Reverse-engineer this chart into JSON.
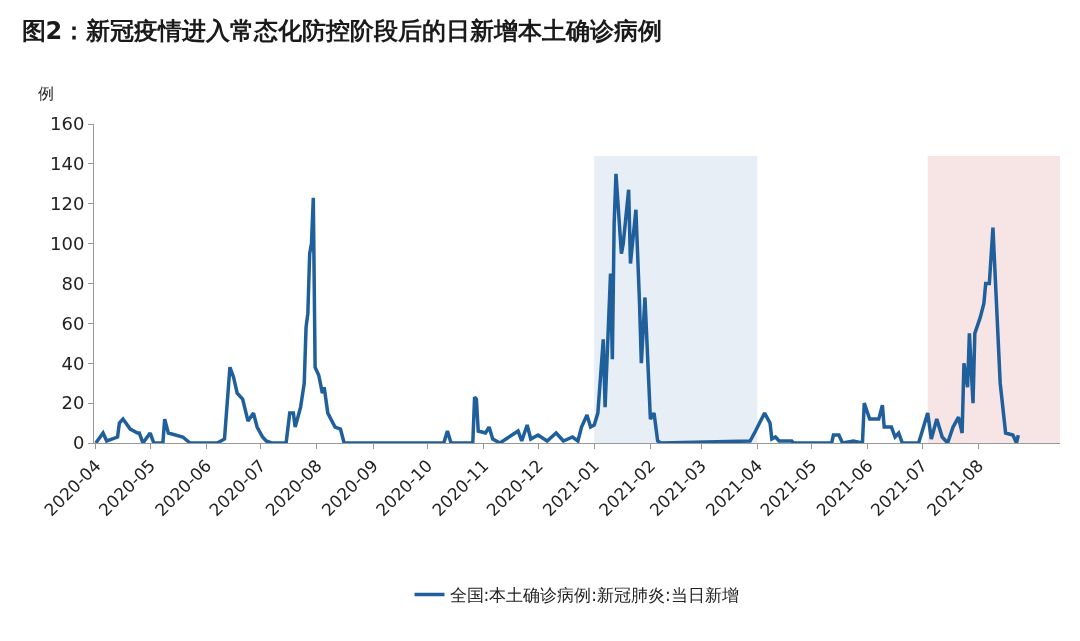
{
  "chart_data": {
    "type": "line",
    "title": "图2：新冠疫情进入常态化防控阶段后的日新增本土确诊病例",
    "ylabel": "例",
    "x": [
      "2020-04-01",
      "2020-04-05",
      "2020-04-07",
      "2020-04-13",
      "2020-04-14",
      "2020-04-16",
      "2020-04-20",
      "2020-04-24",
      "2020-04-25",
      "2020-04-27",
      "2020-05-01",
      "2020-05-03",
      "2020-05-08",
      "2020-05-09",
      "2020-05-11",
      "2020-05-19",
      "2020-05-23",
      "2020-06-07",
      "2020-06-11",
      "2020-06-14",
      "2020-06-16",
      "2020-06-18",
      "2020-06-21",
      "2020-06-24",
      "2020-06-27",
      "2020-06-29",
      "2020-07-02",
      "2020-07-04",
      "2020-07-07",
      "2020-07-15",
      "2020-07-17",
      "2020-07-19",
      "2020-07-20",
      "2020-07-23",
      "2020-07-25",
      "2020-07-26",
      "2020-07-27",
      "2020-07-28",
      "2020-07-29",
      "2020-07-30",
      "2020-07-31",
      "2020-08-02",
      "2020-08-04",
      "2020-08-05",
      "2020-08-07",
      "2020-08-11",
      "2020-08-14",
      "2020-08-16",
      "2020-10-10",
      "2020-10-12",
      "2020-10-14",
      "2020-10-26",
      "2020-10-27",
      "2020-10-28",
      "2020-10-29",
      "2020-11-02",
      "2020-11-04",
      "2020-11-06",
      "2020-11-10",
      "2020-11-20",
      "2020-11-22",
      "2020-11-25",
      "2020-11-27",
      "2020-12-01",
      "2020-12-06",
      "2020-12-11",
      "2020-12-15",
      "2020-12-20",
      "2020-12-23",
      "2020-12-25",
      "2020-12-28",
      "2020-12-30",
      "2021-01-01",
      "2021-01-03",
      "2021-01-06",
      "2021-01-07",
      "2021-01-10",
      "2021-01-11",
      "2021-01-12",
      "2021-01-13",
      "2021-01-16",
      "2021-01-17",
      "2021-01-20",
      "2021-01-21",
      "2021-01-24",
      "2021-01-26",
      "2021-01-27",
      "2021-01-29",
      "2021-02-01",
      "2021-02-03",
      "2021-02-05",
      "2021-02-07",
      "2021-03-28",
      "2021-03-31",
      "2021-04-05",
      "2021-04-08",
      "2021-04-09",
      "2021-04-11",
      "2021-04-13",
      "2021-04-20",
      "2021-04-21",
      "2021-05-12",
      "2021-05-13",
      "2021-05-16",
      "2021-05-18",
      "2021-05-24",
      "2021-05-29",
      "2021-05-30",
      "2021-06-02",
      "2021-06-07",
      "2021-06-09",
      "2021-06-10",
      "2021-06-14",
      "2021-06-16",
      "2021-06-18",
      "2021-06-20",
      "2021-06-29",
      "2021-07-04",
      "2021-07-06",
      "2021-07-09",
      "2021-07-12",
      "2021-07-15",
      "2021-07-18",
      "2021-07-21",
      "2021-07-23",
      "2021-07-24",
      "2021-07-26",
      "2021-07-27",
      "2021-07-29",
      "2021-07-30",
      "2021-08-02",
      "2021-08-04",
      "2021-08-05",
      "2021-08-07",
      "2021-08-09",
      "2021-08-13",
      "2021-08-16",
      "2021-08-20",
      "2021-08-22",
      "2021-08-23"
    ],
    "series": [
      {
        "name": "全国:本土确诊病例:新冠肺炎:当日新增",
        "color": "#1f5f9b",
        "values": [
          0,
          5,
          1,
          3,
          10,
          12,
          7,
          5,
          5,
          0,
          5,
          0,
          0,
          12,
          5,
          3,
          0,
          0,
          2,
          38,
          33,
          25,
          22,
          11,
          15,
          8,
          3,
          1,
          0,
          0,
          15,
          15,
          8,
          18,
          30,
          58,
          65,
          95,
          100,
          123,
          38,
          34,
          25,
          28,
          15,
          8,
          7,
          0,
          0,
          6,
          0,
          0,
          23,
          22,
          6,
          5,
          8,
          2,
          0,
          6,
          1,
          9,
          2,
          4,
          1,
          5,
          1,
          3,
          1,
          8,
          14,
          8,
          9,
          15,
          52,
          18,
          85,
          42,
          110,
          135,
          95,
          100,
          127,
          90,
          117,
          70,
          40,
          73,
          12,
          15,
          1,
          0,
          1,
          6,
          15,
          10,
          2,
          3,
          1,
          1,
          0,
          0,
          4,
          4,
          0,
          1,
          0,
          20,
          12,
          12,
          19,
          8,
          8,
          3,
          5,
          0,
          0,
          15,
          2,
          12,
          3,
          0,
          8,
          13,
          5,
          40,
          28,
          55,
          20,
          55,
          63,
          70,
          80,
          80,
          108,
          30,
          5,
          4,
          0,
          4
        ]
      }
    ],
    "xlim": [
      "2020-03-31",
      "2021-09-15"
    ],
    "xticks": [
      {
        "value": "2020-04-01",
        "label": "2020-04"
      },
      {
        "value": "2020-05-01",
        "label": "2020-05"
      },
      {
        "value": "2020-06-01",
        "label": "2020-06"
      },
      {
        "value": "2020-07-01",
        "label": "2020-07"
      },
      {
        "value": "2020-08-01",
        "label": "2020-08"
      },
      {
        "value": "2020-09-01",
        "label": "2020-09"
      },
      {
        "value": "2020-10-01",
        "label": "2020-10"
      },
      {
        "value": "2020-11-01",
        "label": "2020-11"
      },
      {
        "value": "2020-12-01",
        "label": "2020-12"
      },
      {
        "value": "2021-01-01",
        "label": "2021-01"
      },
      {
        "value": "2021-02-01",
        "label": "2021-02"
      },
      {
        "value": "2021-03-01",
        "label": "2021-03"
      },
      {
        "value": "2021-04-01",
        "label": "2021-04"
      },
      {
        "value": "2021-05-01",
        "label": "2021-05"
      },
      {
        "value": "2021-06-01",
        "label": "2021-06"
      },
      {
        "value": "2021-07-01",
        "label": "2021-07"
      },
      {
        "value": "2021-08-01",
        "label": "2021-08"
      }
    ],
    "ylim": [
      0,
      160
    ],
    "yticks": [
      0,
      20,
      40,
      60,
      80,
      100,
      120,
      140,
      160
    ],
    "bands": [
      {
        "axis": "x",
        "from": "2021-01-01",
        "to": "2021-04-01",
        "color": "#e8eef6"
      },
      {
        "axis": "x",
        "from": "2021-07-04",
        "to": "2021-09-15",
        "color": "#f7e4e4"
      }
    ],
    "grid": false,
    "legend": "bottom",
    "marker": "none",
    "line_style": "solid"
  }
}
